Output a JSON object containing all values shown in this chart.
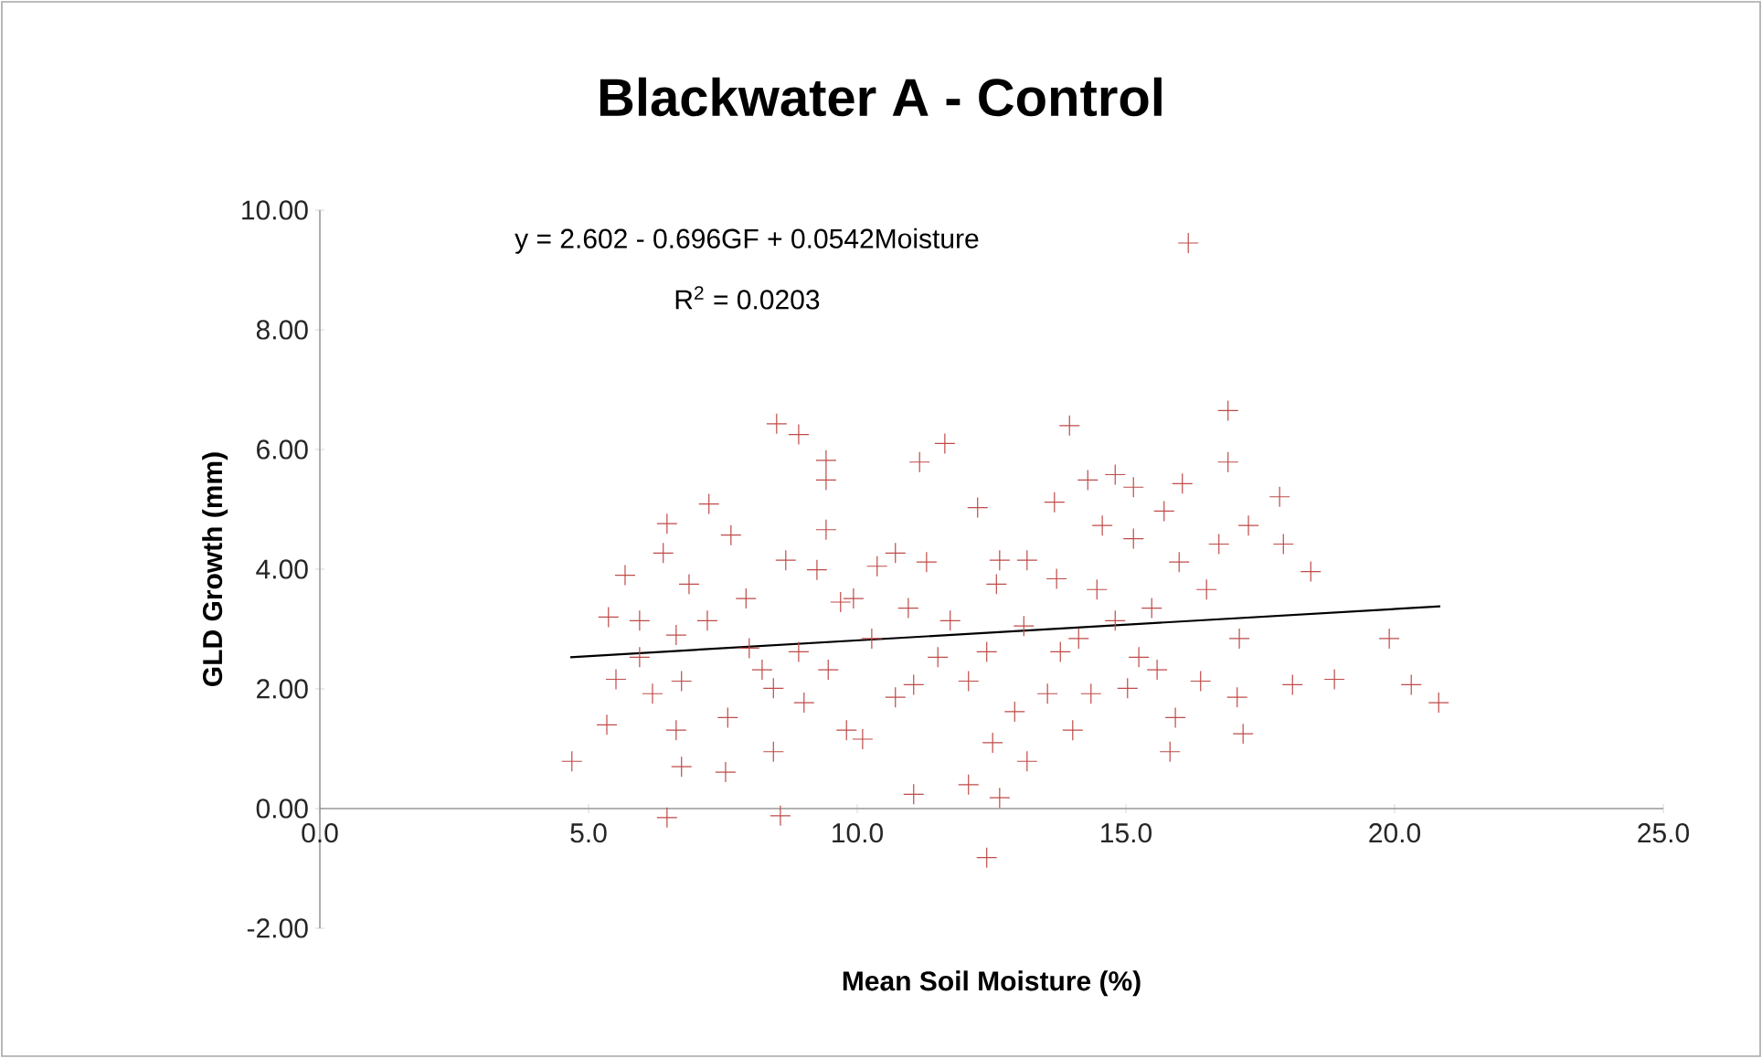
{
  "chart_data": {
    "type": "scatter",
    "title": "Blackwater A - Control",
    "xlabel": "Mean Soil Moisture (%)",
    "ylabel": "GLD Growth (mm)",
    "annotations": [
      "y = 2.602 - 0.696GF + 0.0542Moisture",
      "R$^{2}$ = 0.0203"
    ],
    "xlim": [
      0,
      25
    ],
    "ylim": [
      -2,
      10
    ],
    "xticks": [
      {
        "value": 0,
        "label": "0.0"
      },
      {
        "value": 5,
        "label": "5.0"
      },
      {
        "value": 10,
        "label": "10.0"
      },
      {
        "value": 15,
        "label": "15.0"
      },
      {
        "value": 20,
        "label": "20.0"
      },
      {
        "value": 25,
        "label": "25.0"
      }
    ],
    "yticks": [
      {
        "value": -2,
        "label": "-2.00"
      },
      {
        "value": 0,
        "label": "0.00"
      },
      {
        "value": 2,
        "label": "2.00"
      },
      {
        "value": 4,
        "label": "4.00"
      },
      {
        "value": 6,
        "label": "6.00"
      },
      {
        "value": 8,
        "label": "8.00"
      },
      {
        "value": 10,
        "label": "10.00"
      }
    ],
    "series": [
      {
        "color": "#be4b48",
        "marker": "cross",
        "x": [
          8.5,
          8.91,
          9.42,
          9.42,
          7.24,
          6.46,
          7.65,
          9.42,
          5.68,
          6.39,
          5.37,
          5.95,
          6.87,
          7.93,
          8.67,
          9.25,
          9.93,
          10.71,
          11.29,
          11.63,
          11.16,
          5.51,
          5.34,
          6.19,
          6.73,
          6.63,
          6.73,
          7.55,
          7.59,
          8.44,
          8.44,
          9.46,
          9.8,
          10.1,
          11.05,
          4.69,
          6.46,
          8.57,
          10.71,
          11.5,
          7.21,
          8.91,
          8.23,
          10.27,
          6.63,
          10.95,
          16.9,
          16.9,
          13.95,
          17.86,
          12.24,
          13.67,
          14.29,
          14.8,
          15.14,
          16.05,
          15.71,
          14.56,
          15.14,
          17.28,
          17.93,
          16.73,
          18.44,
          15.99,
          12.65,
          13.16,
          13.71,
          14.46,
          16.5,
          15.48,
          17.11,
          19.9,
          18.88,
          18.1,
          17.07,
          16.39,
          15.58,
          15.24,
          14.35,
          13.78,
          13.1,
          12.41,
          12.07,
          12.93,
          14.01,
          15.82,
          17.18,
          15.92,
          13.16,
          12.52,
          12.07,
          12.65,
          12.41,
          13.54,
          15.03,
          20.31,
          20.82,
          16.16,
          10.37,
          11.73,
          12.59,
          9.69,
          11.05,
          9.01,
          14.8,
          14.12,
          7.99,
          5.95
        ],
        "values": [
          6.43,
          6.25,
          5.82,
          5.49,
          5.09,
          4.76,
          4.57,
          4.66,
          3.9,
          4.27,
          3.2,
          3.14,
          3.75,
          3.51,
          4.15,
          3.99,
          3.51,
          4.27,
          4.12,
          6.1,
          5.79,
          2.16,
          1.4,
          1.92,
          2.13,
          1.31,
          0.7,
          0.61,
          1.52,
          2.01,
          0.95,
          2.32,
          1.31,
          1.16,
          0.24,
          0.79,
          -0.15,
          -0.12,
          1.86,
          2.53,
          3.14,
          2.62,
          2.32,
          2.84,
          2.9,
          3.35,
          6.65,
          5.79,
          6.4,
          5.21,
          5.03,
          5.12,
          5.49,
          5.58,
          5.37,
          5.43,
          4.97,
          4.73,
          4.51,
          4.73,
          4.42,
          4.42,
          3.96,
          4.12,
          4.15,
          4.15,
          3.84,
          3.66,
          3.66,
          3.35,
          2.84,
          2.84,
          2.16,
          2.07,
          1.86,
          2.13,
          2.32,
          2.53,
          1.92,
          2.62,
          3.05,
          2.62,
          2.13,
          1.62,
          1.31,
          0.95,
          1.25,
          1.52,
          0.79,
          1.1,
          0.4,
          0.18,
          -0.82,
          1.92,
          2.01,
          2.07,
          1.77,
          9.45,
          4.05,
          3.14,
          3.75,
          3.45,
          2.07,
          1.77,
          3.14,
          2.84,
          2.68,
          2.53
        ]
      },
      {
        "type": "line",
        "color": "#000000",
        "line_style": "solid",
        "x": [
          4.66,
          20.85
        ],
        "values": [
          2.53,
          3.38
        ]
      }
    ]
  }
}
